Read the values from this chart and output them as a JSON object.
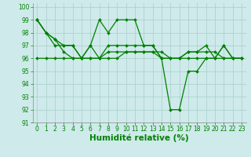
{
  "series": [
    {
      "x": [
        0,
        1,
        2,
        3,
        4,
        5,
        6,
        7,
        8,
        9,
        10,
        11,
        12,
        13,
        14,
        15,
        16,
        17,
        18,
        19,
        20,
        21,
        22,
        23
      ],
      "y": [
        99,
        98,
        97.5,
        96.5,
        96,
        96,
        97,
        99,
        98,
        99,
        99,
        99,
        97,
        97,
        96,
        92,
        92,
        95,
        95,
        96,
        96,
        97,
        96,
        96
      ]
    },
    {
      "x": [
        0,
        1,
        2,
        3,
        4,
        5,
        6,
        7,
        8,
        9,
        10,
        11,
        12,
        13,
        14,
        15,
        16,
        17,
        18,
        19,
        20,
        21,
        22,
        23
      ],
      "y": [
        99,
        98,
        97.5,
        97,
        97,
        96,
        97,
        96,
        97,
        97,
        97,
        97,
        97,
        97,
        96,
        96,
        96,
        96.5,
        96.5,
        97,
        96,
        97,
        96,
        96
      ]
    },
    {
      "x": [
        0,
        1,
        2,
        3,
        4,
        5,
        6,
        7,
        8,
        9,
        10,
        11,
        12,
        13,
        14,
        15,
        16,
        17,
        18,
        19,
        20,
        21,
        22,
        23
      ],
      "y": [
        96,
        96,
        96,
        96,
        96,
        96,
        96,
        96,
        96,
        96,
        96.5,
        96.5,
        96.5,
        96.5,
        96,
        96,
        96,
        96,
        96,
        96,
        96,
        96,
        96,
        96
      ]
    },
    {
      "x": [
        0,
        1,
        2,
        3,
        4,
        5,
        6,
        7,
        8,
        9,
        10,
        11,
        12,
        13,
        14,
        15,
        16,
        17,
        18,
        19,
        20,
        21,
        22,
        23
      ],
      "y": [
        99,
        98,
        97,
        97,
        97,
        96,
        96,
        96,
        96.5,
        96.5,
        96.5,
        96.5,
        96.5,
        96.5,
        96.5,
        96,
        96,
        96.5,
        96.5,
        96.5,
        96.5,
        96,
        96,
        96
      ]
    }
  ],
  "line_color": "#008000",
  "marker": "D",
  "markersize": 2.0,
  "linewidth": 0.9,
  "xlim": [
    -0.5,
    23.5
  ],
  "ylim": [
    91,
    100.3
  ],
  "yticks": [
    91,
    92,
    93,
    94,
    95,
    96,
    97,
    98,
    99,
    100
  ],
  "xticks": [
    0,
    1,
    2,
    3,
    4,
    5,
    6,
    7,
    8,
    9,
    10,
    11,
    12,
    13,
    14,
    15,
    16,
    17,
    18,
    19,
    20,
    21,
    22,
    23
  ],
  "xlabel": "Humidité relative (%)",
  "background_color": "#ceeaea",
  "grid_color": "#aacccc",
  "tick_fontsize": 5.5,
  "xlabel_fontsize": 7.5,
  "xlabel_color": "#008000",
  "tick_color": "#008000"
}
